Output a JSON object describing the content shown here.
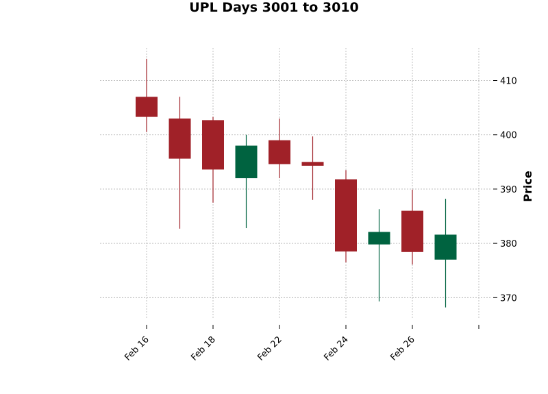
{
  "chart_data": {
    "type": "candlestick",
    "title": "UPL Days 3001 to 3010",
    "xlabel": "",
    "ylabel": "Price",
    "ylim": [
      366,
      416
    ],
    "y_ticks": [
      370,
      380,
      390,
      400,
      410
    ],
    "x_tick_labels": [
      "Feb 16",
      "Feb 18",
      "Feb 22",
      "Feb 24",
      "Feb 26",
      ""
    ],
    "x_tick_positions": [
      0,
      2,
      4,
      6,
      8,
      10
    ],
    "grid": true,
    "y_axis_side": "right",
    "up_color": "#006340",
    "down_color": "#a02128",
    "candles": [
      {
        "open": 407.0,
        "high": 414.0,
        "low": 400.5,
        "close": 403.3
      },
      {
        "open": 403.0,
        "high": 407.0,
        "low": 382.7,
        "close": 395.6
      },
      {
        "open": 402.7,
        "high": 403.3,
        "low": 387.5,
        "close": 393.6
      },
      {
        "open": 392.0,
        "high": 400.0,
        "low": 382.8,
        "close": 398.0
      },
      {
        "open": 399.0,
        "high": 403.0,
        "low": 392.0,
        "close": 394.6
      },
      {
        "open": 395.0,
        "high": 399.7,
        "low": 388.0,
        "close": 394.3
      },
      {
        "open": 391.8,
        "high": 393.5,
        "low": 376.5,
        "close": 378.5
      },
      {
        "open": 379.8,
        "high": 386.3,
        "low": 369.3,
        "close": 382.1
      },
      {
        "open": 386.0,
        "high": 389.9,
        "low": 376.1,
        "close": 378.4
      },
      {
        "open": 377.0,
        "high": 388.2,
        "low": 368.2,
        "close": 381.6
      }
    ]
  }
}
